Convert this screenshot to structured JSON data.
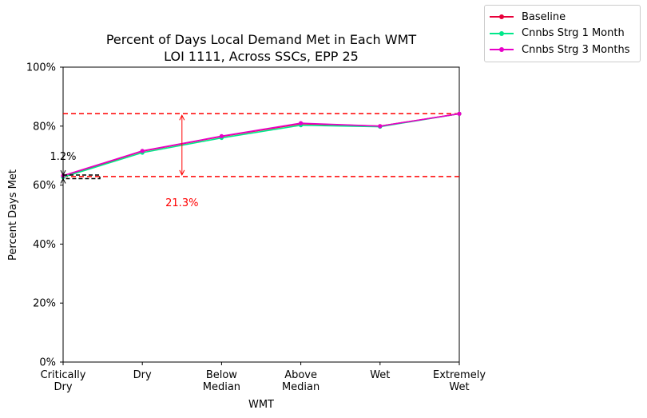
{
  "chart_data": {
    "type": "line",
    "title": "Percent of Days Local Demand Met in Each WMT",
    "subtitle": "LOI 1111, Across SSCs, EPP 25",
    "xlabel": "WMT",
    "ylabel": "Percent Days Met",
    "categories": [
      [
        "Critically",
        "Dry"
      ],
      [
        "Dry"
      ],
      [
        "Below",
        "Median"
      ],
      [
        "Above",
        "Median"
      ],
      [
        "Wet"
      ],
      [
        "Extremely",
        "Wet"
      ]
    ],
    "ylim": [
      0,
      100
    ],
    "yticks": [
      "0%",
      "20%",
      "40%",
      "60%",
      "80%",
      "100%"
    ],
    "ytick_values": [
      0,
      20,
      40,
      60,
      80,
      100
    ],
    "series": [
      {
        "name": "Baseline",
        "color": "#e8003a",
        "values": [
          63.0,
          71.5,
          76.5,
          80.8,
          80.0,
          84.2
        ]
      },
      {
        "name": "Cnnbs Strg 1 Month",
        "color": "#00e88a",
        "values": [
          62.7,
          71.0,
          76.0,
          80.3,
          79.8,
          84.2
        ]
      },
      {
        "name": "Cnnbs Strg 3 Months",
        "color": "#e800c8",
        "values": [
          63.2,
          71.6,
          76.6,
          81.0,
          80.0,
          84.2
        ]
      }
    ],
    "reference_lines": [
      {
        "value": 84.2,
        "color": "#ff0000",
        "style": "dashed"
      },
      {
        "value": 62.9,
        "color": "#ff0000",
        "style": "dashed"
      }
    ],
    "annotations": [
      {
        "text": "21.3%",
        "color": "#ff0000",
        "type": "range-arrow",
        "x_position": 1.5,
        "from": 62.9,
        "to": 84.2
      },
      {
        "text": "1.2%",
        "color": "#000000",
        "type": "small-range",
        "x_position": 0,
        "from": 62.2,
        "to": 63.4
      }
    ],
    "legend_position": "upper-right-outside",
    "grid": false
  }
}
